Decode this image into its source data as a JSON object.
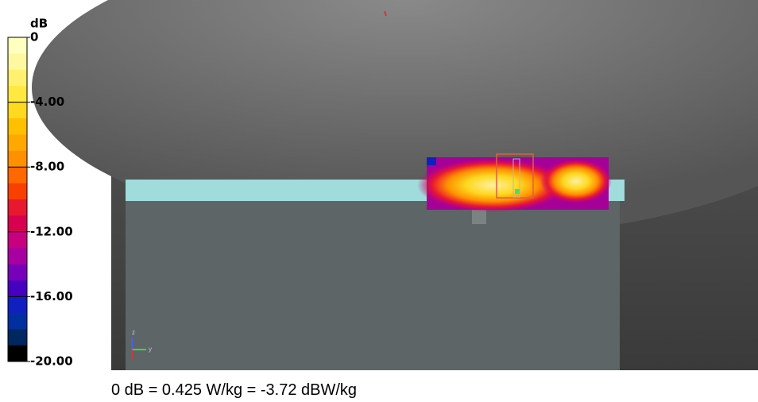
{
  "colorbar": {
    "unit": "dB",
    "ticks": [
      {
        "value": 0,
        "label": "0"
      },
      {
        "value": -4,
        "label": "-4.00"
      },
      {
        "value": -8,
        "label": "-8.00"
      },
      {
        "value": -12,
        "label": "-12.00"
      },
      {
        "value": -16,
        "label": "-16.00"
      },
      {
        "value": -20,
        "label": "-20.00"
      }
    ],
    "colors": [
      "#ffffc0",
      "#fff8a0",
      "#fff070",
      "#ffe840",
      "#ffd820",
      "#ffc000",
      "#ffa800",
      "#ff9000",
      "#ff6800",
      "#f84000",
      "#e81830",
      "#d80050",
      "#c80080",
      "#a800a0",
      "#7800b8",
      "#4800c0",
      "#1020c0",
      "#0030a0",
      "#002860",
      "#000000"
    ]
  },
  "triad": {
    "z": "z",
    "y": "y"
  },
  "caption": "0 dB = 0.425 W/kg = -3.72 dBW/kg"
}
